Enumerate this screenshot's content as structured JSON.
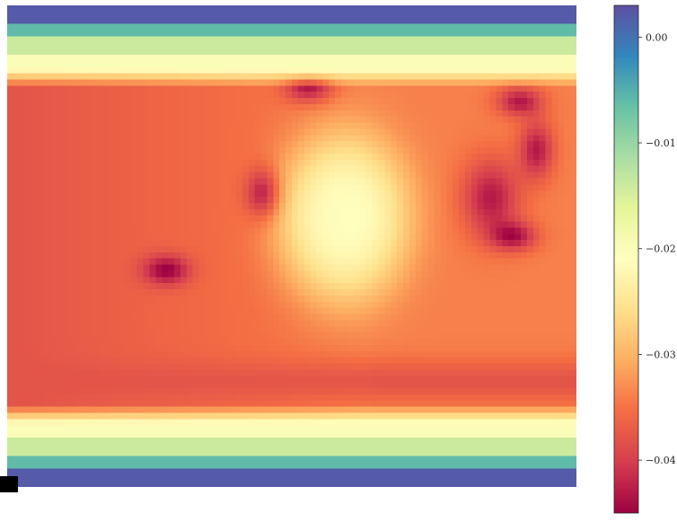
{
  "chart_data": {
    "type": "heatmap",
    "title": "",
    "xlabel": "",
    "ylabel": "",
    "axes_visible": false,
    "colormap": "Spectral",
    "value_range": [
      -0.045,
      0.003
    ],
    "colorbar": {
      "ticks": [
        0.0,
        -0.01,
        -0.02,
        -0.03,
        -0.04
      ],
      "tick_labels": [
        "0.00",
        "−0.01",
        "−0.02",
        "−0.03",
        "−0.04"
      ],
      "position": "right"
    },
    "field_features": {
      "base_interior_value": -0.034,
      "left_interior_value": -0.038,
      "edge_values_top": [
        0.002,
        -0.006,
        -0.014,
        -0.02
      ],
      "edge_values_bottom": [
        -0.02,
        -0.014,
        -0.006,
        0.002
      ],
      "central_high_region_value": -0.021,
      "dark_low_patches_value": -0.044
    }
  },
  "colors": {
    "spectral_stops": [
      "#9e0142",
      "#d53e4f",
      "#f46d43",
      "#fdae61",
      "#fee08b",
      "#ffffbf",
      "#e6f598",
      "#abdda4",
      "#66c2a5",
      "#3288bd",
      "#5e4fa2"
    ]
  }
}
